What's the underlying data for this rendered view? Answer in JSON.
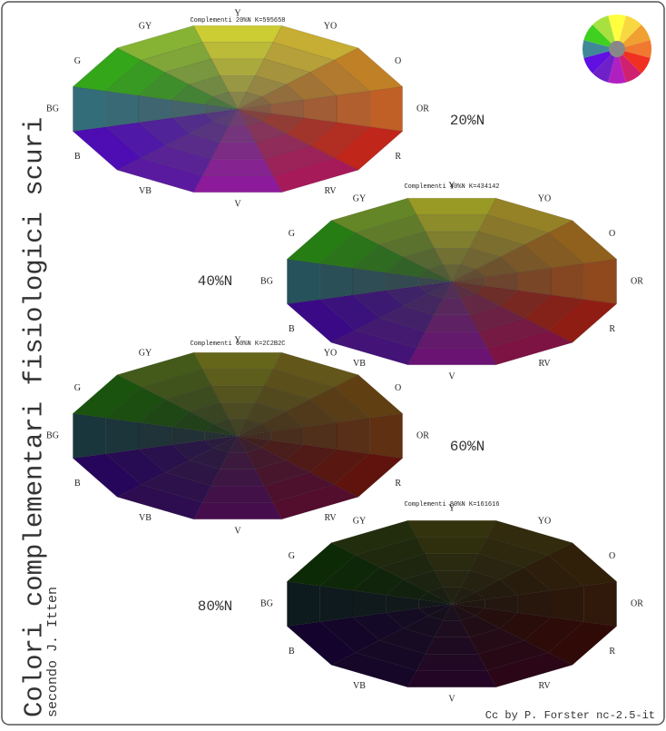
{
  "title": "Colori complementari fisiologici scuri",
  "subtitle": "secondo J. Itten",
  "credit": "Cc by P. Forster nc-2.5-it",
  "hues": [
    {
      "label": "Y",
      "color": "#ffff40"
    },
    {
      "label": "YO",
      "color": "#f8d840"
    },
    {
      "label": "O",
      "color": "#f0a030"
    },
    {
      "label": "OR",
      "color": "#f07830"
    },
    {
      "label": "R",
      "color": "#f03020"
    },
    {
      "label": "RV",
      "color": "#d02070"
    },
    {
      "label": "V",
      "color": "#b020c0"
    },
    {
      "label": "VB",
      "color": "#7020c8"
    },
    {
      "label": "B",
      "color": "#6010e0"
    },
    {
      "label": "BG",
      "color": "#408898"
    },
    {
      "label": "G",
      "color": "#40d020"
    },
    {
      "label": "GY",
      "color": "#a8e040"
    }
  ],
  "wheels": [
    {
      "title": "Complementi 20%N K=595658",
      "label": "20%N",
      "center_color": "#595658"
    },
    {
      "title": "Complementi 40%N K=434142",
      "label": "40%N",
      "center_color": "#434142"
    },
    {
      "title": "Complementi 60%N K=2C2B2C",
      "label": "60%N",
      "center_color": "#2c2b2c"
    },
    {
      "title": "Complementi 80%N K=161616",
      "label": "80%N",
      "center_color": "#161616"
    }
  ]
}
